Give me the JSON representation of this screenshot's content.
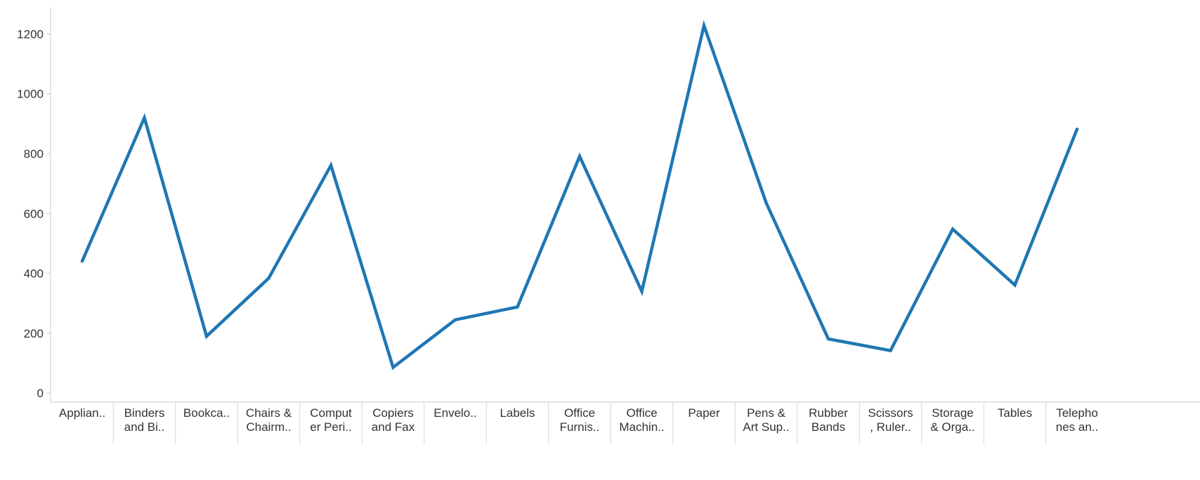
{
  "chart_data": {
    "type": "line",
    "title": "",
    "xlabel": "",
    "ylabel": "",
    "ylim": [
      -30,
      1290
    ],
    "yticks": [
      0,
      200,
      400,
      600,
      800,
      1000,
      1200
    ],
    "grid": false,
    "legend": "none",
    "line_color": "#1f77b4",
    "categories": [
      [
        "Applian.."
      ],
      [
        "Binders",
        "and Bi.."
      ],
      [
        "Bookca.."
      ],
      [
        "Chairs &",
        "Chairm.."
      ],
      [
        "Comput",
        "er Peri.."
      ],
      [
        "Copiers",
        "and Fax"
      ],
      [
        "Envelo.."
      ],
      [
        "Labels"
      ],
      [
        "Office",
        "Furnis.."
      ],
      [
        "Office",
        "Machin.."
      ],
      [
        "Paper"
      ],
      [
        "Pens &",
        "Art Sup.."
      ],
      [
        "Rubber",
        "Bands"
      ],
      [
        "Scissors",
        ", Ruler.."
      ],
      [
        "Storage",
        "& Orga.."
      ],
      [
        "Tables"
      ],
      [
        "Telepho",
        "nes an.."
      ]
    ],
    "series": [
      {
        "values": [
          441,
          920,
          190,
          384,
          761,
          86,
          245,
          288,
          791,
          340,
          1228,
          636,
          181,
          142,
          548,
          361,
          882
        ]
      }
    ]
  }
}
